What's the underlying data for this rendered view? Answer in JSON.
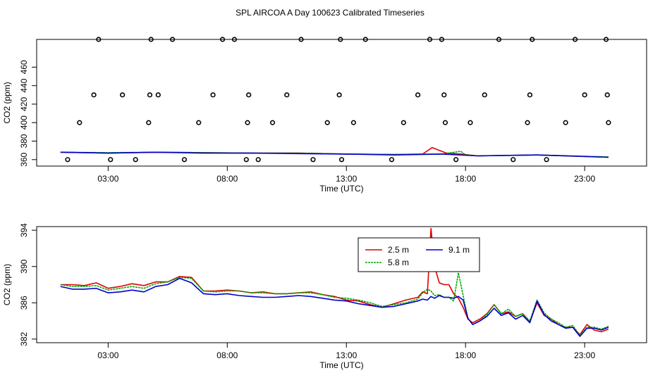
{
  "title": "SPL AIRCOA A  Day 100623  Calibrated Timeseries",
  "colors": {
    "series_2_5": "#dd0000",
    "series_5_8": "#00aa00",
    "series_9_1": "#0000cc",
    "axis": "#000000"
  },
  "chart_data": [
    {
      "type": "scatter",
      "xlabel": "Time (UTC)",
      "ylabel": "CO2 (ppm)",
      "xlim": [
        0,
        25.6
      ],
      "ylim": [
        353,
        490
      ],
      "xticks": [
        3,
        8,
        13,
        18,
        23
      ],
      "xtick_labels": [
        "03:00",
        "08:00",
        "13:00",
        "18:00",
        "23:00"
      ],
      "yticks": [
        360,
        420,
        460
      ],
      "ytick_labels": [
        "360",
        "420",
        "460"
      ],
      "ytick_label_bands": [
        380,
        400,
        440
      ],
      "ytick_label_bands_text": [
        "380",
        "400",
        "440"
      ],
      "markers_x": [
        1.3,
        1.8,
        2.4,
        2.6,
        3.1,
        3.6,
        4.15,
        4.7,
        4.75,
        4.8,
        5.1,
        5.7,
        6.2,
        6.8,
        7.4,
        7.8,
        8.3,
        8.8,
        8.85,
        8.9,
        9.3,
        9.9,
        10.5,
        11.1,
        11.6,
        12.2,
        12.7,
        12.75,
        12.8,
        13.3,
        13.8,
        14.9,
        15.4,
        16.0,
        16.5,
        17.0,
        17.1,
        17.15,
        17.6,
        18.2,
        18.8,
        19.4,
        20.0,
        20.6,
        20.7,
        20.8,
        21.4,
        22.2,
        22.6,
        23.0,
        23.9,
        23.95,
        24.0
      ],
      "markers_y": [
        360,
        400,
        430,
        490,
        360,
        430,
        360,
        400,
        430,
        490,
        430,
        490,
        360,
        400,
        430,
        490,
        490,
        360,
        400,
        430,
        360,
        400,
        430,
        490,
        360,
        400,
        430,
        490,
        360,
        400,
        490,
        360,
        400,
        430,
        490,
        490,
        430,
        400,
        360,
        400,
        430,
        490,
        360,
        400,
        430,
        490,
        360,
        400,
        490,
        430,
        490,
        430,
        400
      ],
      "series": [
        {
          "name": "2.5 m",
          "x": [
            1.0,
            3.0,
            5.0,
            7.0,
            9.0,
            11.0,
            13.0,
            15.0,
            16.2,
            16.6,
            17.2,
            17.8,
            18.5,
            21.0,
            24.0
          ],
          "values": [
            368,
            367,
            368,
            367.5,
            367,
            367,
            366,
            365.5,
            366,
            373,
            367,
            366,
            364,
            365,
            362.5
          ]
        },
        {
          "name": "5.8 m",
          "x": [
            1.0,
            3.0,
            5.0,
            7.0,
            9.0,
            11.0,
            13.0,
            15.0,
            16.2,
            17.0,
            17.8,
            18.0,
            18.5,
            21.0,
            24.0
          ],
          "values": [
            368,
            367.5,
            368,
            367.5,
            367,
            367,
            366,
            365.5,
            366,
            366,
            369,
            365,
            364,
            365,
            363
          ]
        },
        {
          "name": "9.1 m",
          "x": [
            1.0,
            3.0,
            5.0,
            7.0,
            9.0,
            11.0,
            13.0,
            15.0,
            17.0,
            18.5,
            21.0,
            24.0
          ],
          "values": [
            368,
            367,
            368,
            367,
            367,
            366.5,
            366,
            365,
            366,
            364,
            365,
            362.5
          ]
        }
      ]
    },
    {
      "type": "line",
      "xlabel": "Time (UTC)",
      "ylabel": "CO2 (ppm)",
      "xlim": [
        0,
        25.6
      ],
      "ylim": [
        381.6,
        394.4
      ],
      "xticks": [
        3,
        8,
        13,
        18,
        23
      ],
      "xtick_labels": [
        "03:00",
        "08:00",
        "13:00",
        "18:00",
        "23:00"
      ],
      "yticks": [
        382,
        386,
        390,
        394
      ],
      "ytick_labels": [
        "382",
        "386",
        "390",
        "394"
      ],
      "legend": {
        "placement": "top-center",
        "entries": [
          "2.5 m",
          "5.8 m",
          "9.1 m"
        ]
      },
      "series": [
        {
          "name": "2.5 m",
          "x": [
            1.0,
            1.5,
            2.0,
            2.5,
            3.0,
            3.5,
            4.0,
            4.5,
            5.0,
            5.5,
            6.0,
            6.5,
            7.0,
            7.5,
            8.0,
            8.5,
            9.0,
            9.5,
            10.0,
            10.5,
            11.0,
            11.5,
            12.0,
            12.5,
            13.0,
            13.5,
            14.0,
            14.5,
            15.0,
            15.5,
            16.0,
            16.2,
            16.4,
            16.55,
            16.7,
            16.9,
            17.1,
            17.3,
            17.5,
            17.7,
            17.9,
            18.1,
            18.3,
            18.6,
            18.9,
            19.2,
            19.5,
            19.8,
            20.1,
            20.4,
            20.7,
            21.0,
            21.3,
            21.6,
            21.9,
            22.2,
            22.5,
            22.8,
            23.1,
            23.4,
            23.7,
            24.0
          ],
          "values": [
            388.0,
            388.0,
            387.9,
            388.2,
            387.6,
            387.8,
            388.1,
            387.9,
            388.3,
            388.3,
            388.9,
            388.8,
            387.3,
            387.3,
            387.4,
            387.3,
            387.1,
            387.2,
            387.0,
            387.0,
            387.1,
            387.2,
            386.9,
            386.7,
            386.3,
            386.2,
            385.8,
            385.5,
            385.9,
            386.3,
            386.6,
            387.2,
            387.0,
            394.2,
            390.0,
            388.2,
            388.0,
            388.0,
            387.0,
            386.5,
            385.5,
            384.2,
            383.8,
            384.2,
            384.8,
            385.8,
            384.8,
            385.0,
            384.5,
            384.8,
            383.9,
            386.0,
            384.6,
            384.2,
            383.6,
            383.3,
            383.3,
            382.5,
            383.6,
            383.0,
            382.8,
            383.1
          ]
        },
        {
          "name": "5.8 m",
          "x": [
            1.0,
            1.5,
            2.0,
            2.5,
            3.0,
            3.5,
            4.0,
            4.5,
            5.0,
            5.5,
            6.0,
            6.5,
            7.0,
            7.5,
            8.0,
            8.5,
            9.0,
            9.5,
            10.0,
            10.5,
            11.0,
            11.5,
            12.0,
            12.5,
            13.0,
            13.5,
            14.0,
            14.5,
            15.0,
            15.5,
            16.0,
            16.2,
            16.4,
            16.55,
            16.7,
            16.9,
            17.1,
            17.3,
            17.5,
            17.7,
            17.9,
            18.1,
            18.3,
            18.6,
            18.9,
            19.2,
            19.5,
            19.8,
            20.1,
            20.4,
            20.7,
            21.0,
            21.3,
            21.6,
            21.9,
            22.2,
            22.5,
            22.8,
            23.1,
            23.4,
            23.7,
            24.0
          ],
          "values": [
            388.0,
            387.8,
            387.8,
            387.9,
            387.4,
            387.6,
            387.8,
            387.6,
            388.1,
            388.3,
            388.8,
            388.7,
            387.3,
            387.2,
            387.3,
            387.3,
            387.1,
            387.1,
            387.0,
            387.0,
            387.1,
            387.1,
            386.9,
            386.6,
            386.5,
            386.3,
            386.0,
            385.6,
            385.8,
            386.0,
            386.4,
            387.1,
            387.5,
            387.3,
            386.8,
            386.9,
            386.6,
            386.6,
            386.2,
            389.3,
            386.8,
            384.3,
            383.6,
            384.0,
            384.7,
            385.8,
            384.8,
            385.3,
            384.5,
            384.8,
            384.0,
            386.3,
            384.9,
            384.2,
            383.8,
            383.3,
            383.5,
            382.4,
            383.3,
            383.3,
            383.1,
            383.4
          ]
        },
        {
          "name": "9.1 m",
          "x": [
            1.0,
            1.5,
            2.0,
            2.5,
            3.0,
            3.5,
            4.0,
            4.5,
            5.0,
            5.5,
            6.0,
            6.5,
            7.0,
            7.5,
            8.0,
            8.5,
            9.0,
            9.5,
            10.0,
            10.5,
            11.0,
            11.5,
            12.0,
            12.5,
            13.0,
            13.5,
            14.0,
            14.5,
            15.0,
            15.5,
            16.0,
            16.2,
            16.4,
            16.55,
            16.7,
            16.9,
            17.1,
            17.3,
            17.5,
            17.7,
            17.9,
            18.1,
            18.3,
            18.6,
            18.9,
            19.2,
            19.5,
            19.8,
            20.1,
            20.4,
            20.7,
            21.0,
            21.3,
            21.6,
            21.9,
            22.2,
            22.5,
            22.8,
            23.1,
            23.4,
            23.7,
            24.0
          ],
          "values": [
            387.8,
            387.5,
            387.5,
            387.6,
            387.1,
            387.2,
            387.4,
            387.2,
            387.8,
            388.0,
            388.7,
            388.2,
            387.0,
            386.9,
            387.0,
            386.8,
            386.7,
            386.6,
            386.6,
            386.7,
            386.8,
            386.7,
            386.5,
            386.3,
            386.2,
            385.9,
            385.7,
            385.5,
            385.6,
            385.9,
            386.2,
            386.4,
            386.3,
            386.7,
            386.5,
            386.8,
            386.6,
            386.6,
            386.5,
            386.7,
            386.3,
            384.3,
            383.6,
            384.0,
            384.5,
            385.4,
            384.6,
            384.9,
            384.2,
            384.6,
            383.8,
            386.2,
            384.7,
            384.0,
            383.6,
            383.2,
            383.3,
            382.3,
            383.2,
            383.2,
            383.0,
            383.3
          ]
        }
      ]
    }
  ]
}
